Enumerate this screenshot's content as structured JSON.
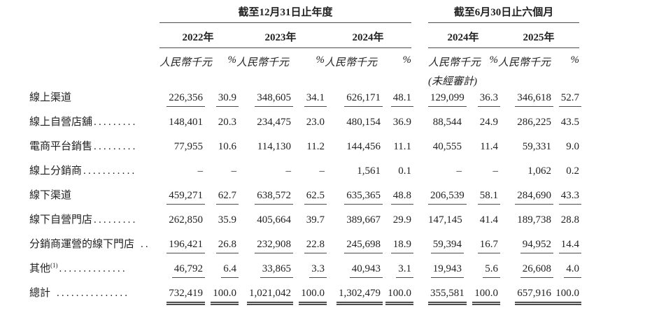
{
  "header": {
    "period_groups": [
      {
        "title": "截至12月31日止年度"
      },
      {
        "title": "截至6月30日止六個月"
      }
    ],
    "columns": [
      {
        "year": "2022年",
        "amount_header": "人民幣千元",
        "percent_header": "%",
        "note": ""
      },
      {
        "year": "2023年",
        "amount_header": "人民幣千元",
        "percent_header": "%",
        "note": ""
      },
      {
        "year": "2024年",
        "amount_header": "人民幣千元",
        "percent_header": "%",
        "note": ""
      },
      {
        "year": "2024年",
        "amount_header": "人民幣千元",
        "percent_header": "%",
        "note": "(未經審計)"
      },
      {
        "year": "2025年",
        "amount_header": "人民幣千元",
        "percent_header": "%",
        "note": ""
      }
    ]
  },
  "rows": [
    {
      "label": "線上渠道",
      "sup": "",
      "dots": "",
      "bold": true,
      "rule": "single",
      "values": [
        "226,356",
        "30.9",
        "348,605",
        "34.1",
        "626,171",
        "48.1",
        "129,099",
        "36.3",
        "346,618",
        "52.7"
      ]
    },
    {
      "label": "線上自營店舖",
      "sup": "",
      "dots": ".........",
      "bold": false,
      "rule": "none",
      "values": [
        "148,401",
        "20.3",
        "234,475",
        "23.0",
        "480,154",
        "36.9",
        "88,544",
        "24.9",
        "286,225",
        "43.5"
      ]
    },
    {
      "label": "電商平台銷售",
      "sup": "",
      "dots": ".........",
      "bold": false,
      "rule": "none",
      "values": [
        "77,955",
        "10.6",
        "114,130",
        "11.2",
        "144,456",
        "11.1",
        "40,555",
        "11.4",
        "59,331",
        "9.0"
      ]
    },
    {
      "label": "線上分銷商",
      "sup": "",
      "dots": "...........",
      "bold": false,
      "rule": "none",
      "values": [
        "–",
        "–",
        "–",
        "–",
        "1,561",
        "0.1",
        "–",
        "–",
        "1,062",
        "0.2"
      ]
    },
    {
      "label": "線下渠道",
      "sup": "",
      "dots": "",
      "bold": true,
      "rule": "single",
      "values": [
        "459,271",
        "62.7",
        "638,572",
        "62.5",
        "635,365",
        "48.8",
        "206,539",
        "58.1",
        "284,690",
        "43.3"
      ]
    },
    {
      "label": "線下自營門店",
      "sup": "",
      "dots": ".........",
      "bold": false,
      "rule": "none",
      "values": [
        "262,850",
        "35.9",
        "405,664",
        "39.7",
        "389,667",
        "29.9",
        "147,145",
        "41.4",
        "189,738",
        "28.8"
      ]
    },
    {
      "label": "分銷商運營的線下門店",
      "sup": "",
      "dots": " ..",
      "bold": false,
      "rule": "single",
      "values": [
        "196,421",
        "26.8",
        "232,908",
        "22.8",
        "245,698",
        "18.9",
        "59,394",
        "16.7",
        "94,952",
        "14.4"
      ]
    },
    {
      "label": "其他",
      "sup": "(1)",
      "dots": "..............",
      "bold": true,
      "rule": "single",
      "values": [
        "46,792",
        "6.4",
        "33,865",
        "3.3",
        "40,943",
        "3.1",
        "19,943",
        "5.6",
        "26,608",
        "4.0"
      ]
    },
    {
      "label": "總計",
      "sup": "",
      "dots": " ...............",
      "bold": true,
      "rule": "double",
      "values": [
        "732,419",
        "100.0",
        "1,021,042",
        "100.0",
        "1,302,479",
        "100.0",
        "355,581",
        "100.0",
        "657,916",
        "100.0"
      ]
    }
  ]
}
